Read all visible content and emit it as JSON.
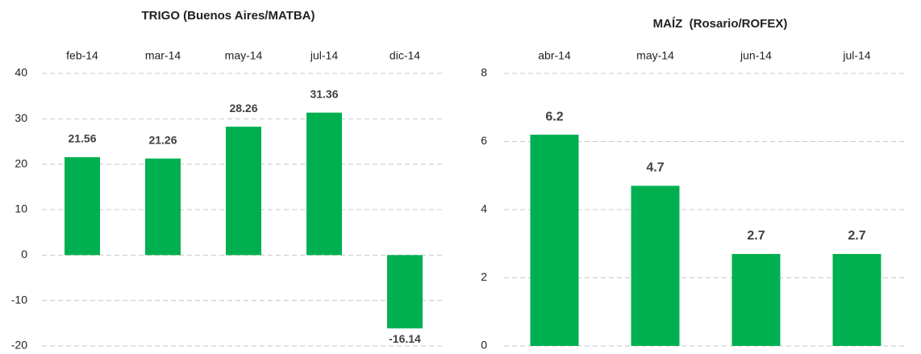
{
  "chart_data": [
    {
      "type": "bar",
      "title": "TRIGO (Buenos Aires/MATBA)",
      "categories": [
        "feb-14",
        "mar-14",
        "may-14",
        "jul-14",
        "dic-14"
      ],
      "values": [
        21.56,
        21.26,
        28.26,
        31.36,
        -16.14
      ],
      "color": "#00b050",
      "ylim": [
        -20,
        40
      ],
      "yticks": [
        -20,
        -10,
        0,
        10,
        20,
        30,
        40
      ],
      "grid": true
    },
    {
      "type": "bar",
      "title": "MAÍZ  (Rosario/ROFEX)",
      "categories": [
        "abr-14",
        "may-14",
        "jun-14",
        "jul-14"
      ],
      "values": [
        6.2,
        4.7,
        2.7,
        2.7
      ],
      "color": "#00b050",
      "ylim": [
        0,
        8
      ],
      "yticks": [
        0,
        2,
        4,
        6,
        8
      ],
      "grid": true
    }
  ]
}
